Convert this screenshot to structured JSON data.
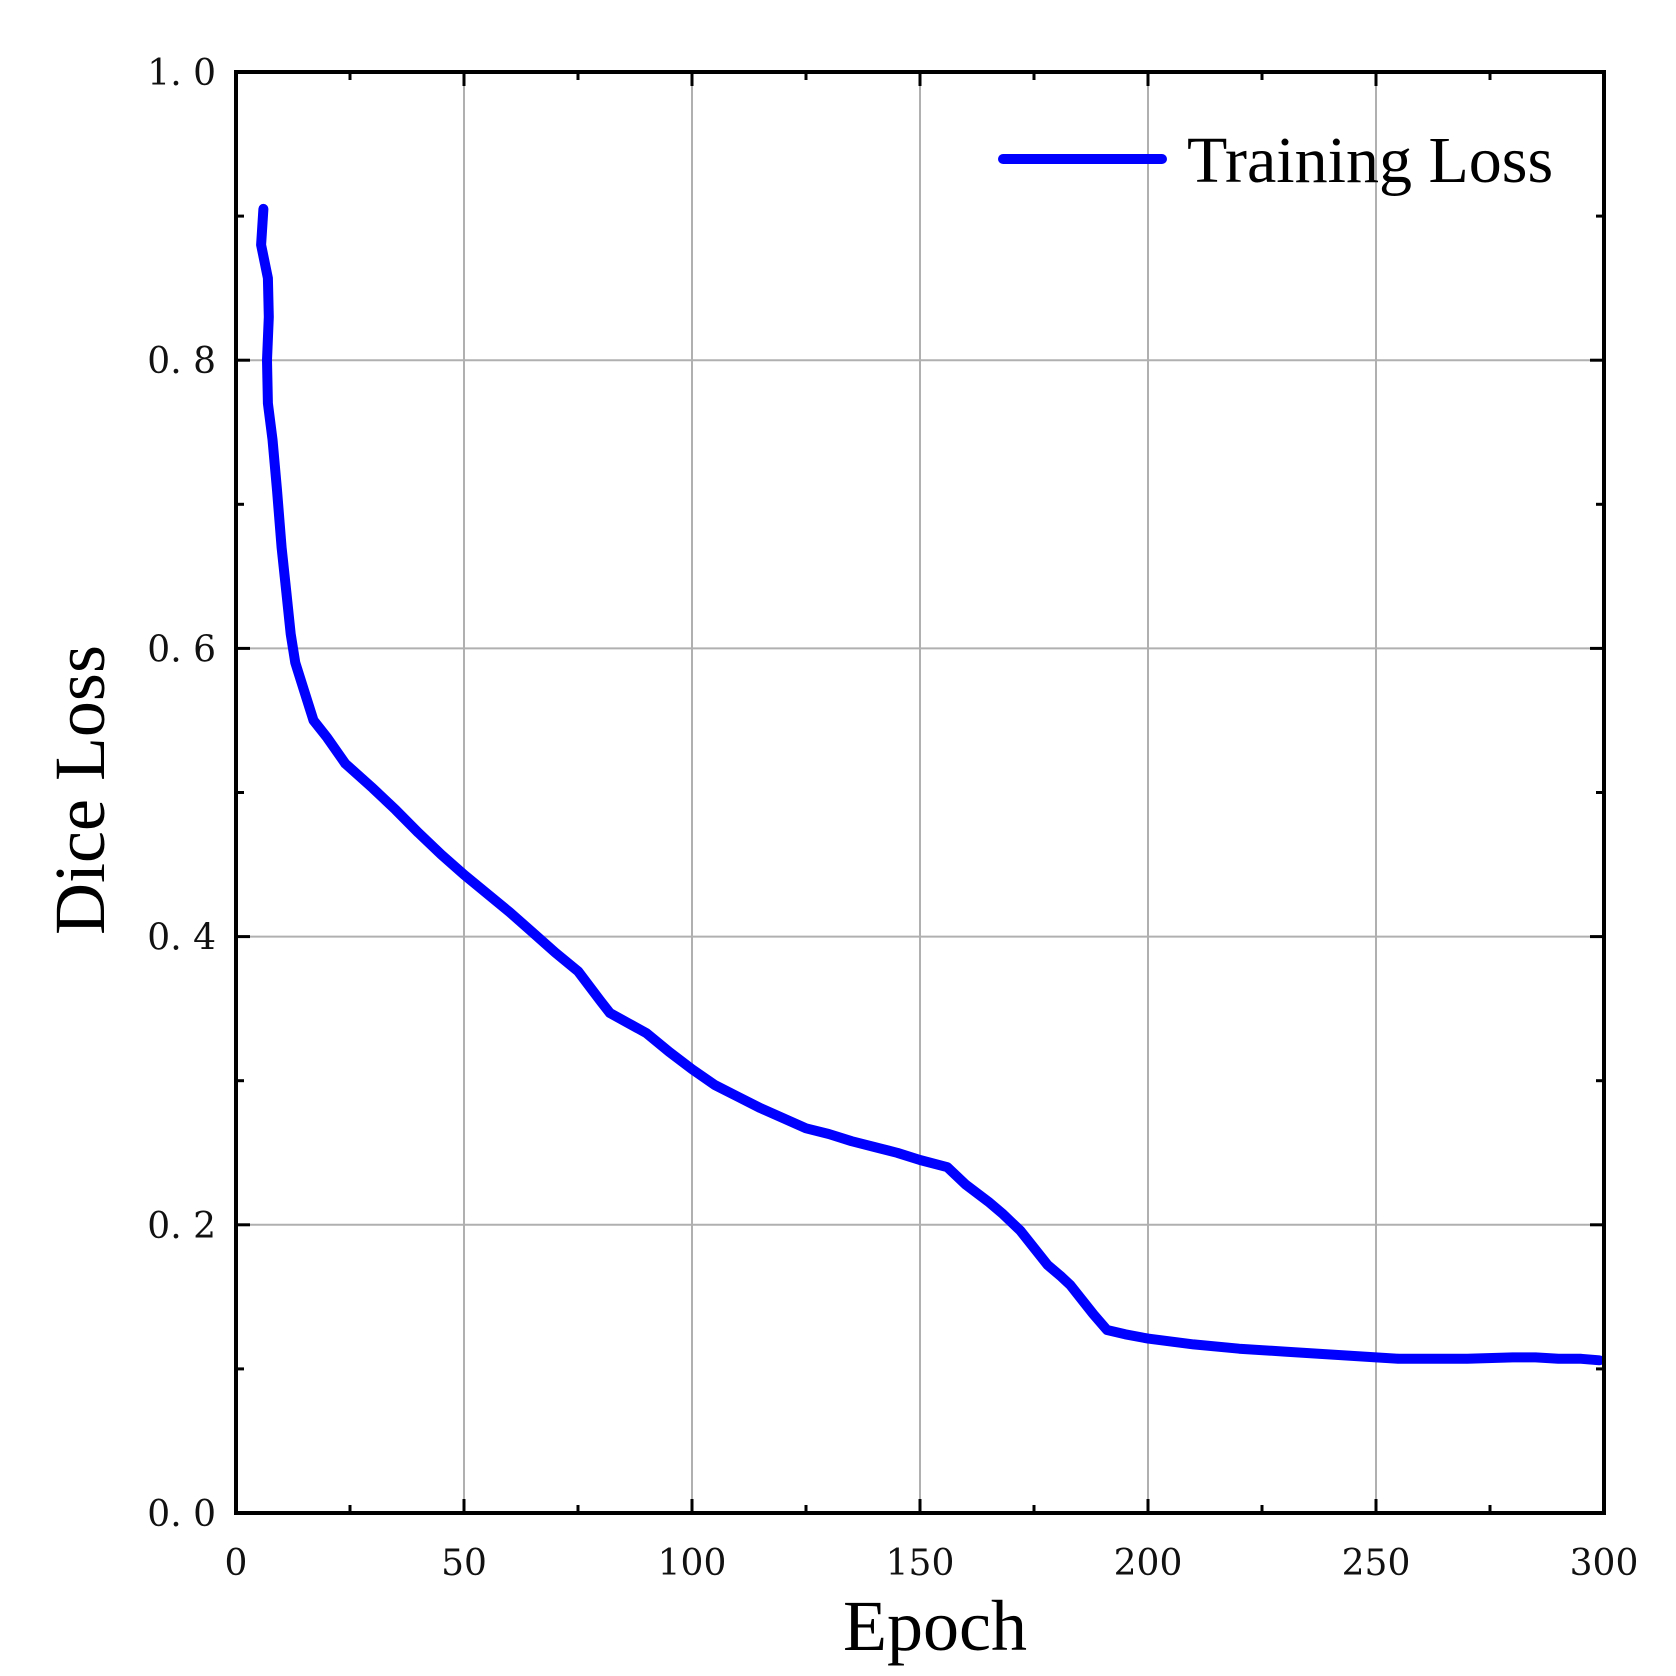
{
  "chart_data": {
    "type": "line",
    "title": "",
    "xlabel": "Epoch",
    "ylabel": "Dice Loss",
    "xlim": [
      0,
      300
    ],
    "ylim": [
      0.0,
      1.0
    ],
    "xticks": [
      0,
      50,
      100,
      150,
      200,
      250,
      300
    ],
    "xtick_labels": [
      "0",
      "50",
      "100",
      "150",
      "200",
      "250",
      "300"
    ],
    "yticks": [
      0.0,
      0.2,
      0.4,
      0.6,
      0.8,
      1.0
    ],
    "ytick_labels": [
      "0. 0",
      "0. 2",
      "0. 4",
      "0. 6",
      "0. 8",
      "1. 0"
    ],
    "x_minor_step": 25,
    "y_minor_step": 0.1,
    "grid": true,
    "legend_position": "top-right",
    "series": [
      {
        "name": "Training Loss",
        "color": "#0000ff",
        "x": [
          6,
          5.5,
          7,
          7.2,
          6.8,
          7,
          8,
          9,
          10,
          11,
          12,
          13,
          15,
          17,
          20,
          24,
          30,
          35,
          40,
          45,
          50,
          55,
          60,
          65,
          70,
          75,
          80,
          82,
          86,
          90,
          95,
          100,
          105,
          110,
          115,
          120,
          125,
          130,
          135,
          140,
          145,
          150,
          156,
          160,
          165,
          168,
          172,
          175,
          178,
          181,
          183,
          186,
          188,
          191,
          195,
          200,
          210,
          220,
          230,
          240,
          250,
          255,
          260,
          270,
          280,
          285,
          290,
          295,
          299
        ],
        "y": [
          0.905,
          0.88,
          0.857,
          0.83,
          0.8,
          0.77,
          0.745,
          0.71,
          0.67,
          0.64,
          0.61,
          0.59,
          0.57,
          0.55,
          0.538,
          0.52,
          0.503,
          0.488,
          0.472,
          0.457,
          0.443,
          0.43,
          0.417,
          0.403,
          0.389,
          0.376,
          0.355,
          0.347,
          0.34,
          0.333,
          0.32,
          0.308,
          0.297,
          0.289,
          0.281,
          0.274,
          0.267,
          0.263,
          0.258,
          0.254,
          0.25,
          0.245,
          0.24,
          0.228,
          0.216,
          0.208,
          0.196,
          0.184,
          0.172,
          0.164,
          0.158,
          0.146,
          0.138,
          0.127,
          0.124,
          0.121,
          0.117,
          0.114,
          0.112,
          0.11,
          0.108,
          0.107,
          0.107,
          0.107,
          0.108,
          0.108,
          0.107,
          0.107,
          0.106
        ]
      }
    ]
  }
}
